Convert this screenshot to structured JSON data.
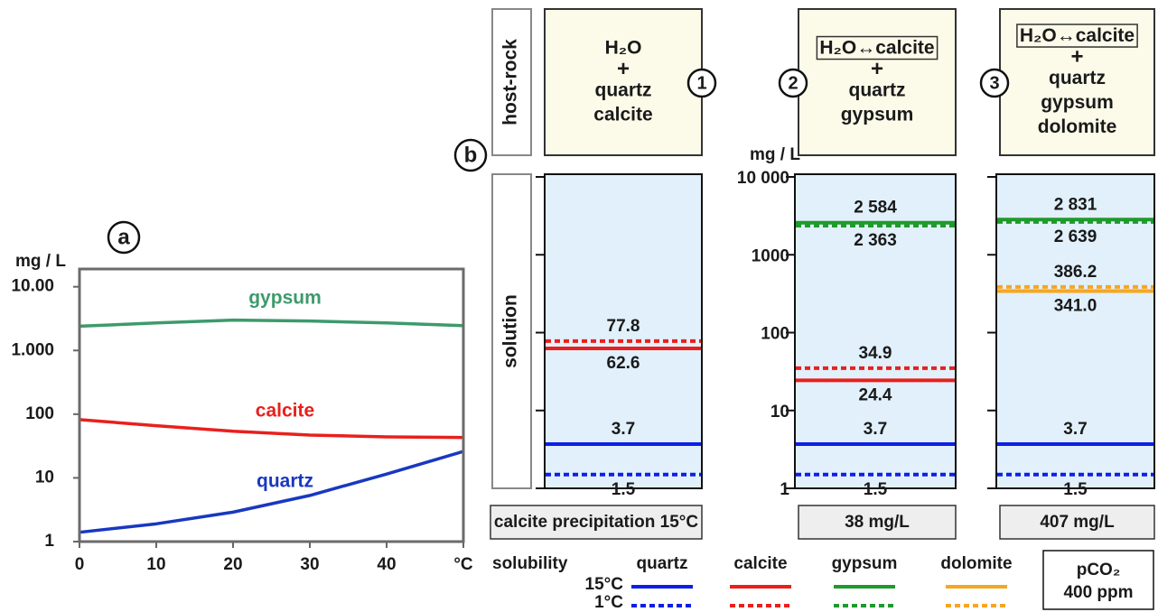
{
  "chart_data": [
    {
      "type": "line",
      "panel_label": "a",
      "y_label": "mg / L",
      "x": [
        0,
        10,
        20,
        30,
        40,
        50
      ],
      "xlim": [
        0,
        50
      ],
      "xticks": [
        0,
        10,
        20,
        30,
        40,
        {
          "value": 50,
          "label": "°C"
        }
      ],
      "ylim": [
        1,
        19000
      ],
      "log_y": true,
      "yticks": [
        1,
        10,
        100,
        {
          "value": 1000,
          "label": "1.000"
        },
        {
          "value": 10000,
          "label": "10.00"
        }
      ],
      "series": [
        {
          "name": "gypsum",
          "color": "#3d9a6c",
          "values": [
            2400,
            2700,
            3000,
            2900,
            2700,
            2450
          ]
        },
        {
          "name": "calcite",
          "color": "#e8201c",
          "values": [
            82,
            66,
            54,
            47,
            44,
            43
          ]
        },
        {
          "name": "quartz",
          "color": "#1838c0",
          "values": [
            1.4,
            1.9,
            2.9,
            5.3,
            11.5,
            26
          ]
        }
      ]
    },
    {
      "type": "level",
      "panel_label": "b",
      "row_labels": [
        "host-rock",
        "solution"
      ],
      "y_label": "mg / L",
      "ylim": [
        1,
        10000
      ],
      "log_y": true,
      "yticks": [
        1,
        10,
        100,
        1000,
        {
          "value": 10000,
          "label": "10 000"
        }
      ],
      "columns": [
        {
          "step": "1",
          "host_rock": [
            "H₂O",
            "+",
            "quartz",
            "calcite"
          ],
          "boxed_first": false,
          "footer": "calcite precipitation 15°C"
        },
        {
          "step": "2",
          "host_rock": [
            "H₂O↔calcite",
            "+",
            "quartz",
            "gypsum"
          ],
          "boxed_first": true,
          "footer": "38 mg/L"
        },
        {
          "step": "3",
          "host_rock": [
            "H₂O↔calcite",
            "+",
            "quartz",
            "gypsum",
            "dolomite"
          ],
          "boxed_first": true,
          "footer": "407 mg/L"
        }
      ],
      "legend_title": "solubility",
      "temperatures": [
        "15°C",
        "1°C"
      ],
      "series": [
        {
          "name": "quartz",
          "color": "#0d1fe6",
          "values": [
            [
              3.7,
              1.5
            ],
            [
              3.7,
              1.5
            ],
            [
              3.7,
              1.5
            ]
          ]
        },
        {
          "name": "calcite",
          "color": "#e8201c",
          "values": [
            [
              62.6,
              77.8
            ],
            [
              24.4,
              34.9
            ],
            null
          ]
        },
        {
          "name": "gypsum",
          "color": "#1f9a2c",
          "values": [
            null,
            [
              2584,
              2363
            ],
            [
              2831,
              2639
            ]
          ],
          "value_labels": [
            null,
            [
              "2 584",
              "2 363"
            ],
            [
              "2 831",
              "2 639"
            ]
          ]
        },
        {
          "name": "dolomite",
          "color": "#f5a623",
          "values": [
            null,
            null,
            [
              341,
              386.2
            ]
          ],
          "value_labels": [
            null,
            null,
            [
              "341.0",
              "386.2"
            ]
          ]
        }
      ],
      "note": [
        "pCO₂",
        "400 ppm"
      ]
    }
  ]
}
